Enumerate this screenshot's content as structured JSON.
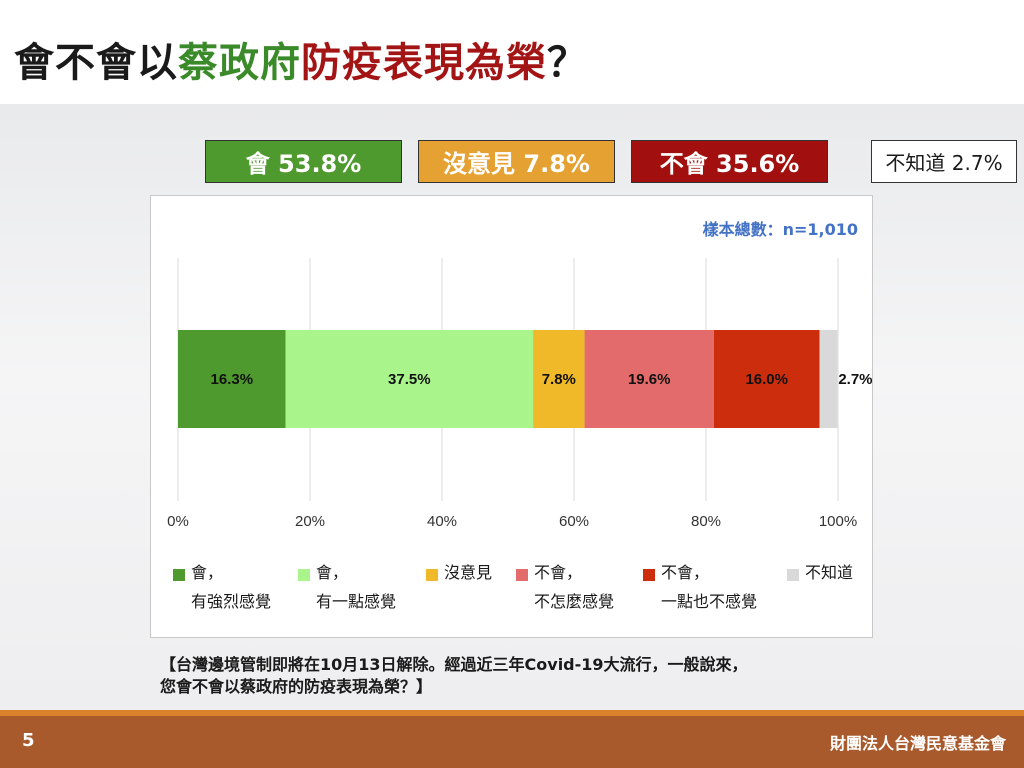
{
  "title": {
    "part1": "會不會以",
    "part2": "蔡政府",
    "part3": "防疫表現為榮",
    "part4": "？"
  },
  "summary": {
    "yes": "會 53.8%",
    "neutral": "沒意見 7.8%",
    "no": "不會 35.6%",
    "dont_know": "不知道 2.7%"
  },
  "sample_size": "樣本總數：n=1,010",
  "chart_data": {
    "type": "bar",
    "orientation": "horizontal-stacked-100",
    "xlim": [
      0,
      100
    ],
    "ticks": [
      "0%",
      "20%",
      "40%",
      "60%",
      "80%",
      "100%"
    ],
    "tick_values": [
      0,
      20,
      40,
      60,
      80,
      100
    ],
    "grid": true,
    "legend_position": "bottom",
    "series": [
      {
        "name": "會，有強烈感覺",
        "legend": [
          "會，",
          "有強烈感覺"
        ],
        "value": 16.3,
        "label": "16.3%",
        "color": "#4f9a2e"
      },
      {
        "name": "會，有一點感覺",
        "legend": [
          "會，",
          "有一點感覺"
        ],
        "value": 37.5,
        "label": "37.5%",
        "color": "#a9f58c"
      },
      {
        "name": "沒意見",
        "legend": [
          "沒意見"
        ],
        "value": 7.8,
        "label": "7.8%",
        "color": "#f0b92a"
      },
      {
        "name": "不會，不怎麼感覺",
        "legend": [
          "不會，",
          "不怎麼感覺"
        ],
        "value": 19.6,
        "label": "19.6%",
        "color": "#e36b6b"
      },
      {
        "name": "不會，一點也不感覺",
        "legend": [
          "不會，",
          "一點也不感覺"
        ],
        "value": 16.0,
        "label": "16.0%",
        "color": "#cc2d0d"
      },
      {
        "name": "不知道",
        "legend": [
          "不知道"
        ],
        "value": 2.7,
        "label": "2.7%",
        "color": "#d9d9d9"
      }
    ]
  },
  "question": {
    "line1": "【台灣邊境管制即將在10月13日解除。經過近三年Covid-19大流行，一般說來，",
    "line2": "您會不會以蔡政府的防疫表現為榮？】"
  },
  "footer": {
    "page_number": "5",
    "organization": "財團法人台灣民意基金會"
  }
}
